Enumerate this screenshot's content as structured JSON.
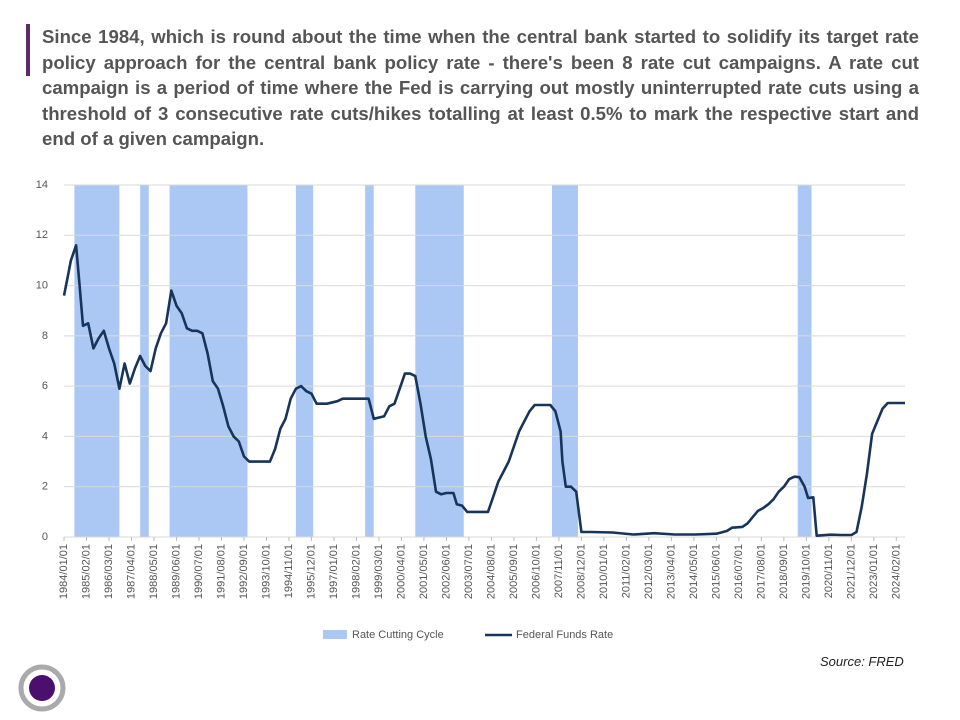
{
  "text": "Since 1984, which is round about the time when the central bank started to solidify its target rate policy approach for the central bank policy rate - there's been 8 rate cut campaigns. A rate cut campaign is a period of time where the Fed is carrying out mostly uninterrupted rate cuts using a threshold of 3 consecutive rate cuts/hikes totalling at least 0.5% to mark the respective start and end of a given campaign.",
  "source": "Source: FRED",
  "chart_data": {
    "type": "line",
    "xlim": [
      "1984/01/01",
      "2024/07/01"
    ],
    "xticks": [
      "1984/01/01",
      "1985/02/01",
      "1986/03/01",
      "1987/04/01",
      "1988/05/01",
      "1989/06/01",
      "1990/07/01",
      "1991/08/01",
      "1992/09/01",
      "1993/10/01",
      "1994/11/01",
      "1995/12/01",
      "1997/01/01",
      "1998/02/01",
      "1999/03/01",
      "2000/04/01",
      "2001/05/01",
      "2002/06/01",
      "2003/07/01",
      "2004/08/01",
      "2005/09/01",
      "2006/10/01",
      "2007/11/01",
      "2008/12/01",
      "2010/01/01",
      "2011/02/01",
      "2012/03/01",
      "2013/04/01",
      "2014/05/01",
      "2015/06/01",
      "2016/07/01",
      "2017/08/01",
      "2018/09/01",
      "2019/10/01",
      "2020/11/01",
      "2021/12/01",
      "2023/01/01",
      "2024/02/01"
    ],
    "ylim": [
      0,
      14
    ],
    "yticks": [
      0,
      2,
      4,
      6,
      8,
      10,
      12,
      14
    ],
    "grid": true,
    "legend": "bottom",
    "bands": {
      "name": "Rate Cutting Cycle",
      "color": "#abc8f4",
      "ranges": [
        [
          "1984/07/01",
          "1986/09/01"
        ],
        [
          "1987/09/01",
          "1988/02/01"
        ],
        [
          "1989/02/01",
          "1992/11/01"
        ],
        [
          "1995/03/01",
          "1996/01/01"
        ],
        [
          "1998/07/01",
          "1998/12/01"
        ],
        [
          "2000/12/01",
          "2003/04/01"
        ],
        [
          "2007/07/01",
          "2008/10/01"
        ],
        [
          "2019/05/01",
          "2020/01/01"
        ]
      ]
    },
    "series": [
      {
        "name": "Federal Funds Rate",
        "color": "#17345a",
        "x": [
          "1984/01/01",
          "1984/03/01",
          "1984/05/01",
          "1984/08/01",
          "1984/10/01",
          "1984/12/01",
          "1985/03/01",
          "1985/06/01",
          "1985/09/01",
          "1985/12/01",
          "1986/03/01",
          "1986/06/01",
          "1986/09/01",
          "1986/12/01",
          "1987/03/01",
          "1987/06/01",
          "1987/09/01",
          "1987/12/01",
          "1988/03/01",
          "1988/06/01",
          "1988/09/01",
          "1988/12/01",
          "1989/03/01",
          "1989/06/01",
          "1989/09/01",
          "1989/12/01",
          "1990/03/01",
          "1990/06/01",
          "1990/09/01",
          "1990/12/01",
          "1991/03/01",
          "1991/06/01",
          "1991/09/01",
          "1991/12/01",
          "1992/03/01",
          "1992/06/01",
          "1992/09/01",
          "1992/12/01",
          "1993/06/01",
          "1993/12/01",
          "1994/03/01",
          "1994/06/01",
          "1994/09/01",
          "1994/12/01",
          "1995/03/01",
          "1995/06/01",
          "1995/09/01",
          "1995/12/01",
          "1996/03/01",
          "1996/09/01",
          "1997/03/01",
          "1997/06/01",
          "1997/12/01",
          "1998/06/01",
          "1998/09/01",
          "1998/12/01",
          "1999/06/01",
          "1999/09/01",
          "1999/12/01",
          "2000/03/01",
          "2000/06/01",
          "2000/09/01",
          "2000/12/01",
          "2001/03/01",
          "2001/06/01",
          "2001/09/01",
          "2001/12/01",
          "2002/03/01",
          "2002/06/01",
          "2002/10/01",
          "2002/12/01",
          "2003/03/01",
          "2003/06/01",
          "2004/03/01",
          "2004/06/01",
          "2004/09/01",
          "2004/12/01",
          "2005/03/01",
          "2005/06/01",
          "2005/09/01",
          "2005/12/01",
          "2006/03/01",
          "2006/06/01",
          "2006/09/01",
          "2007/03/01",
          "2007/06/01",
          "2007/09/01",
          "2007/12/01",
          "2008/01/01",
          "2008/03/01",
          "2008/06/01",
          "2008/09/01",
          "2008/12/01",
          "2009/06/01",
          "2010/06/01",
          "2011/06/01",
          "2012/06/01",
          "2013/06/01",
          "2014/06/01",
          "2015/06/01",
          "2015/12/01",
          "2016/03/01",
          "2016/09/01",
          "2016/12/01",
          "2017/03/01",
          "2017/06/01",
          "2017/09/01",
          "2017/12/01",
          "2018/03/01",
          "2018/06/01",
          "2018/09/01",
          "2018/12/01",
          "2019/03/01",
          "2019/06/01",
          "2019/09/01",
          "2019/11/01",
          "2020/02/01",
          "2020/04/01",
          "2020/12/01",
          "2021/06/01",
          "2021/12/01",
          "2022/03/01",
          "2022/06/01",
          "2022/09/01",
          "2022/12/01",
          "2023/03/01",
          "2023/06/01",
          "2023/09/01",
          "2024/03/01",
          "2024/07/01"
        ],
        "values": [
          9.6,
          10.3,
          11.0,
          11.6,
          10.0,
          8.4,
          8.5,
          7.5,
          7.9,
          8.2,
          7.5,
          6.9,
          5.9,
          6.9,
          6.1,
          6.7,
          7.2,
          6.8,
          6.6,
          7.5,
          8.1,
          8.5,
          9.8,
          9.2,
          8.9,
          8.3,
          8.2,
          8.2,
          8.1,
          7.3,
          6.2,
          5.9,
          5.2,
          4.4,
          4.0,
          3.8,
          3.2,
          3.0,
          3.0,
          3.0,
          3.5,
          4.3,
          4.7,
          5.5,
          5.9,
          6.0,
          5.8,
          5.7,
          5.3,
          5.3,
          5.4,
          5.5,
          5.5,
          5.5,
          5.5,
          4.7,
          4.8,
          5.2,
          5.3,
          5.9,
          6.5,
          6.5,
          6.4,
          5.3,
          4.0,
          3.1,
          1.8,
          1.7,
          1.75,
          1.75,
          1.3,
          1.25,
          1.0,
          1.0,
          1.0,
          1.6,
          2.2,
          2.6,
          3.0,
          3.6,
          4.2,
          4.6,
          5.0,
          5.25,
          5.25,
          5.25,
          5.0,
          4.2,
          3.0,
          2.0,
          2.0,
          1.8,
          0.2,
          0.2,
          0.18,
          0.1,
          0.15,
          0.1,
          0.1,
          0.13,
          0.24,
          0.37,
          0.4,
          0.54,
          0.79,
          1.04,
          1.15,
          1.3,
          1.5,
          1.8,
          2.0,
          2.3,
          2.4,
          2.38,
          2.0,
          1.55,
          1.58,
          0.05,
          0.09,
          0.08,
          0.08,
          0.2,
          1.2,
          2.5,
          4.1,
          4.6,
          5.1,
          5.33,
          5.33,
          5.33
        ]
      }
    ]
  }
}
